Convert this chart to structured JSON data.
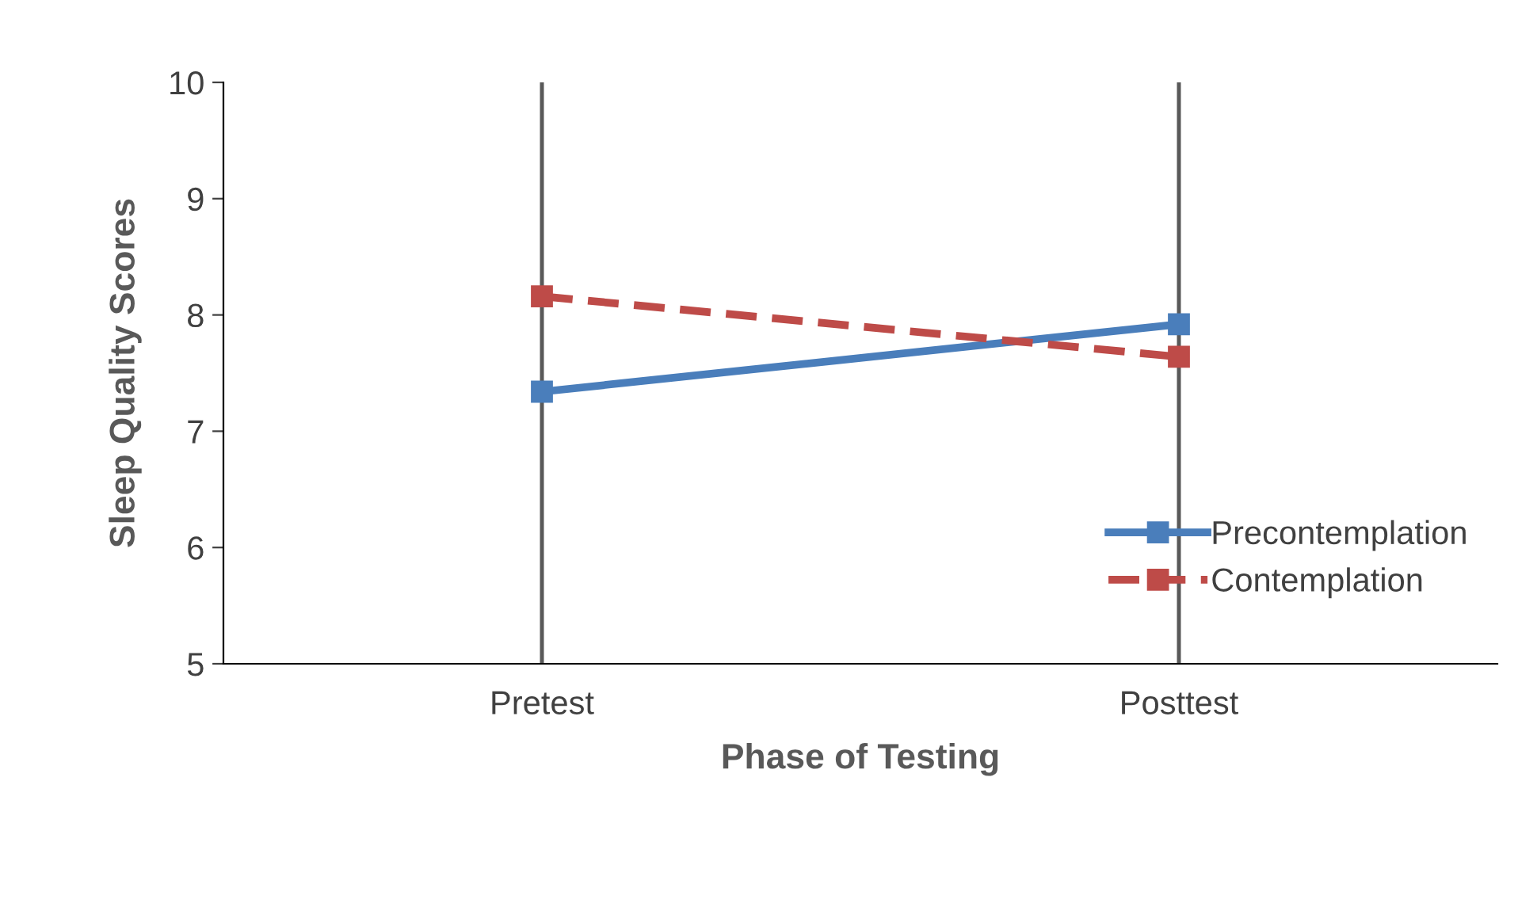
{
  "chart_data": {
    "type": "line",
    "xlabel": "Phase of Testing",
    "ylabel": "Sleep Quality Scores",
    "categories": [
      "Pretest",
      "Posttest"
    ],
    "series": [
      {
        "name": "Precontemplation",
        "color": "#4a7ebb",
        "values": [
          7.34,
          7.92
        ],
        "line_style": "solid"
      },
      {
        "name": "Contemplation",
        "color": "#be4b48",
        "values": [
          8.16,
          7.64
        ],
        "line_style": "dashed"
      }
    ],
    "ylim": [
      5,
      10
    ],
    "yticks": [
      5,
      6,
      7,
      8,
      9,
      10
    ],
    "marker": "square",
    "grid": false,
    "legend": "right",
    "ref_lines": [
      {
        "axis": "x",
        "value": "Pretest",
        "color": "#595959"
      },
      {
        "axis": "x",
        "value": "Posttest",
        "color": "#595959"
      }
    ]
  }
}
